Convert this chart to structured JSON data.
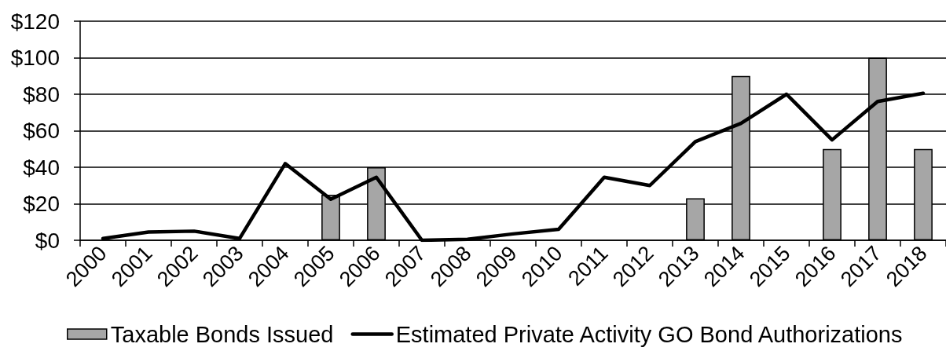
{
  "chart_data": {
    "type": "bar",
    "categories": [
      "2000",
      "2001",
      "2002",
      "2003",
      "2004",
      "2005",
      "2006",
      "2007",
      "2008",
      "2009",
      "2010",
      "2011",
      "2012",
      "2013",
      "2014",
      "2015",
      "2016",
      "2017",
      "2018"
    ],
    "series": [
      {
        "name": "Taxable Bonds Issued",
        "color": "#a6a6a6",
        "values": [
          null,
          null,
          null,
          null,
          null,
          25,
          40,
          null,
          null,
          null,
          null,
          null,
          null,
          23,
          90,
          null,
          50,
          100,
          50
        ]
      },
      {
        "name": "Estimated Private Activity GO Bond Authorizations",
        "type": "line",
        "color": "#000000",
        "values": [
          1,
          4.5,
          5,
          1,
          42,
          22.5,
          34.5,
          0,
          0.5,
          3.5,
          6,
          34.5,
          30,
          54,
          64,
          80,
          55,
          76,
          80.5
        ]
      }
    ],
    "ylim": [
      0,
      120
    ],
    "yticks": [
      {
        "value": 0,
        "label": "$0"
      },
      {
        "value": 20,
        "label": "$20"
      },
      {
        "value": 40,
        "label": "$40"
      },
      {
        "value": 60,
        "label": "$60"
      },
      {
        "value": 80,
        "label": "$80"
      },
      {
        "value": 100,
        "label": "$100"
      },
      {
        "value": 120,
        "label": "$120"
      }
    ],
    "grid": "y",
    "legend": "bottom",
    "marker": "none",
    "line_style": "solid"
  }
}
